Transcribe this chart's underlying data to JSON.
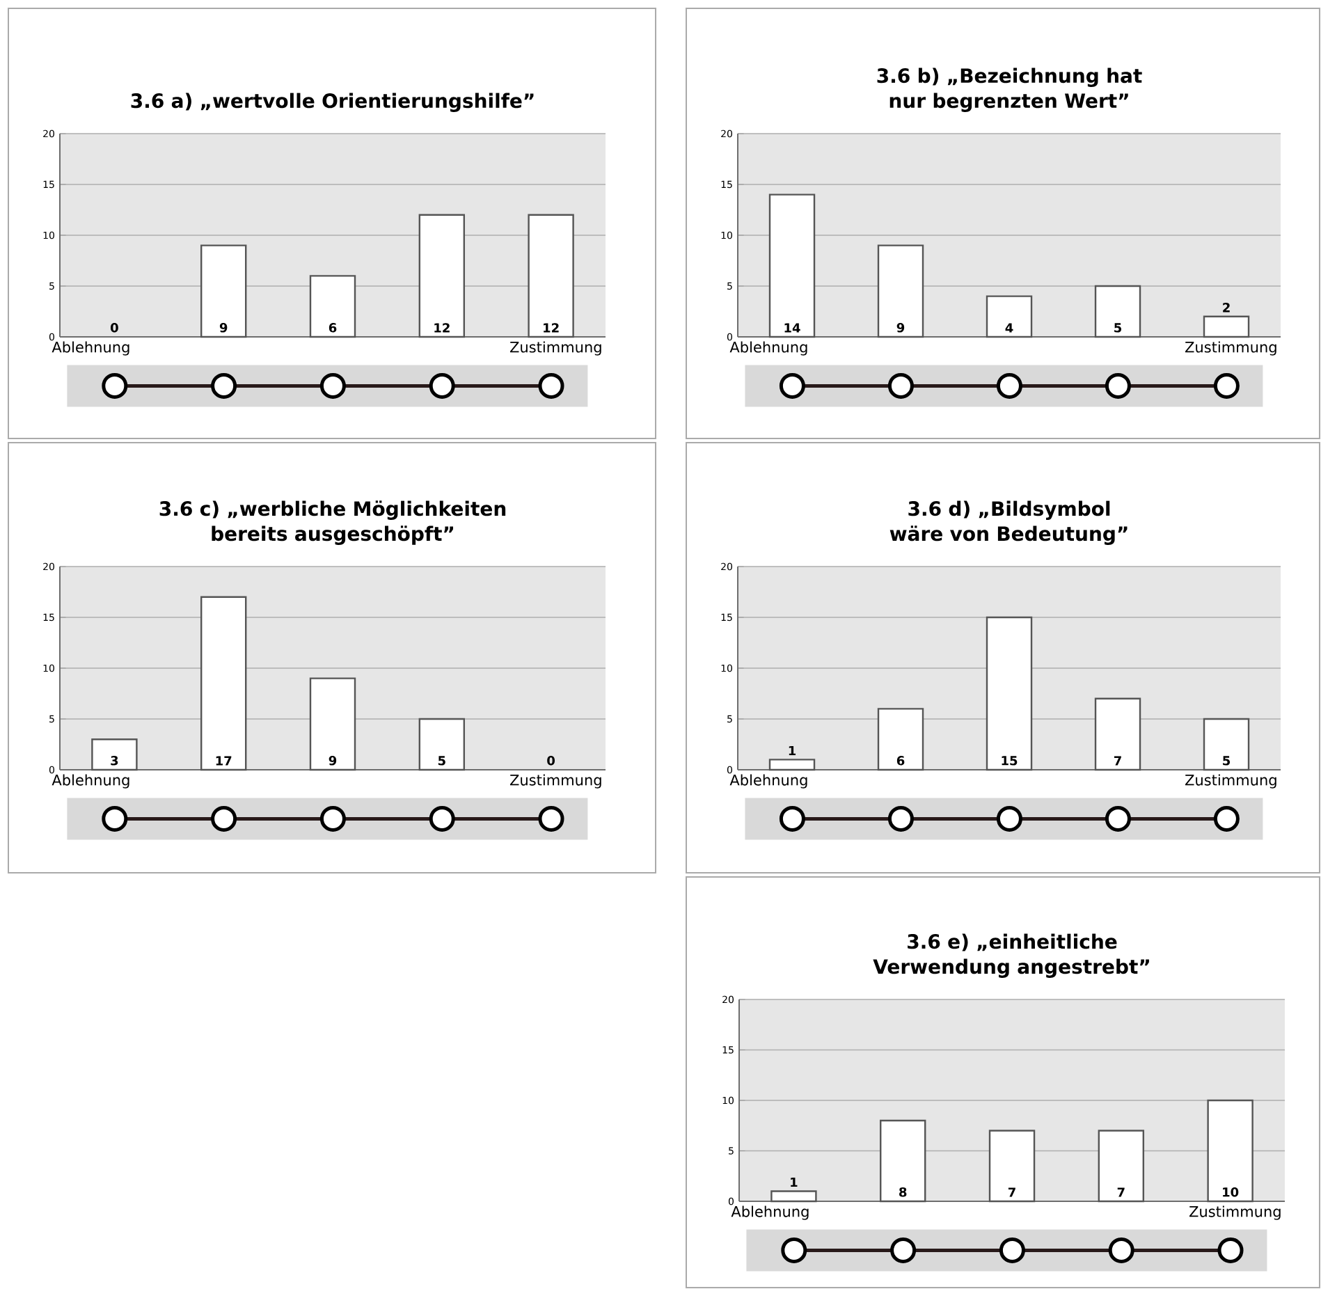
{
  "chart_data": [
    {
      "type": "bar",
      "title": "3.6 a) „wertvolle Orientierungshilfe”",
      "categories": [
        null,
        null,
        null,
        null,
        null
      ],
      "values": [
        0,
        9,
        6,
        12,
        12
      ],
      "color": "#ffffff",
      "data_labels": true,
      "ylim": [
        0,
        20
      ],
      "yticks": [
        0,
        5,
        10,
        15,
        20
      ],
      "grid": "y",
      "tick_labels": "y",
      "annotations": [
        "Ablehnung",
        "Zustimmung"
      ]
    },
    {
      "type": "bar",
      "title": "3.6 b) „Bezeichnung hat nur begrenzten Wert”",
      "categories": [
        null,
        null,
        null,
        null,
        null
      ],
      "values": [
        14,
        9,
        4,
        5,
        2
      ],
      "color": "#ffffff",
      "data_labels": true,
      "ylim": [
        0,
        20
      ],
      "yticks": [
        0,
        5,
        10,
        15,
        20
      ],
      "grid": "y",
      "tick_labels": "y",
      "annotations": [
        "Ablehnung",
        "Zustimmung"
      ]
    },
    {
      "type": "bar",
      "title": "3.6 c) „werbliche Möglichkeiten bereits ausgeschöpft”",
      "categories": [
        null,
        null,
        null,
        null,
        null
      ],
      "values": [
        3,
        17,
        9,
        5,
        0
      ],
      "color": "#ffffff",
      "data_labels": true,
      "ylim": [
        0,
        20
      ],
      "yticks": [
        0,
        5,
        10,
        15,
        20
      ],
      "grid": "y",
      "tick_labels": "y",
      "annotations": [
        "Ablehnung",
        "Zustimmung"
      ]
    },
    {
      "type": "bar",
      "title": "3.6 d) „Bildsymbol wäre von Bedeutung”",
      "categories": [
        null,
        null,
        null,
        null,
        null
      ],
      "values": [
        1,
        6,
        15,
        7,
        5
      ],
      "color": "#ffffff",
      "data_labels": true,
      "ylim": [
        0,
        20
      ],
      "yticks": [
        0,
        5,
        10,
        15,
        20
      ],
      "grid": "y",
      "tick_labels": "y",
      "annotations": [
        "Ablehnung",
        "Zustimmung"
      ]
    },
    {
      "type": "bar",
      "title": "3.6 e) „einheitliche Verwendung angestrebt”",
      "categories": [
        null,
        null,
        null,
        null,
        null
      ],
      "values": [
        1,
        8,
        7,
        7,
        10
      ],
      "color": "#ffffff",
      "data_labels": true,
      "ylim": [
        0,
        20
      ],
      "yticks": [
        0,
        5,
        10,
        15,
        20
      ],
      "grid": "y",
      "tick_labels": "y",
      "annotations": [
        "Ablehnung",
        "Zustimmung"
      ]
    }
  ]
}
